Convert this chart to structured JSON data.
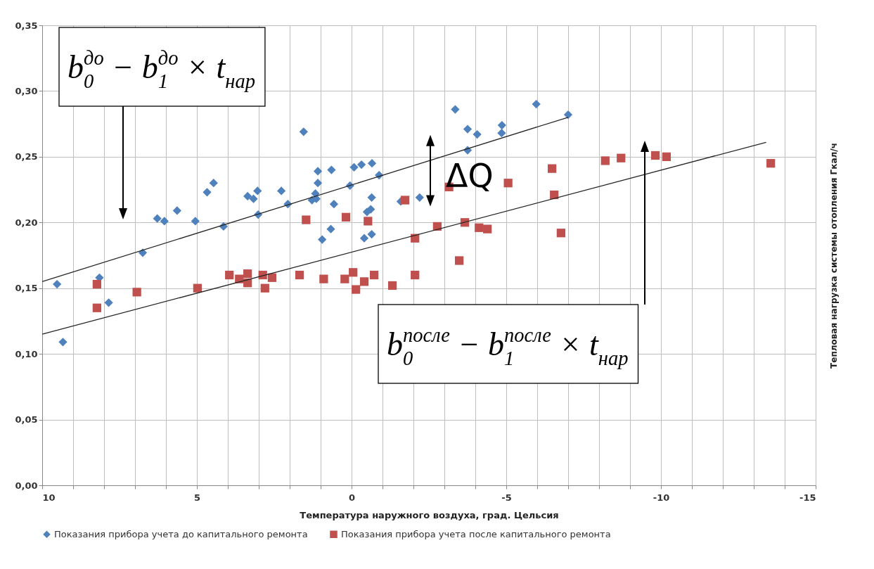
{
  "chart_data": {
    "type": "scatter",
    "xlabel": "Температура наружного воздуха, град. Цельсия",
    "ylabel": "Тепловая нагрузка системы отопления Гкал/ч",
    "xlim": [
      10,
      -15
    ],
    "xticks": [
      10,
      {
        "value": 9,
        "label": null
      },
      {
        "value": 8,
        "label": null
      },
      {
        "value": 7,
        "label": null
      },
      {
        "value": 6,
        "label": null
      },
      5,
      {
        "value": 4,
        "label": null
      },
      {
        "value": 3,
        "label": null
      },
      {
        "value": 2,
        "label": null
      },
      {
        "value": 1,
        "label": null
      },
      0,
      {
        "value": -1,
        "label": null
      },
      {
        "value": -2,
        "label": null
      },
      {
        "value": -3,
        "label": null
      },
      {
        "value": -4,
        "label": null
      },
      -5,
      {
        "value": -6,
        "label": null
      },
      {
        "value": -7,
        "label": null
      },
      {
        "value": -8,
        "label": null
      },
      {
        "value": -9,
        "label": null
      },
      -10,
      {
        "value": -11,
        "label": null
      },
      {
        "value": -12,
        "label": null
      },
      {
        "value": -13,
        "label": null
      },
      {
        "value": -14,
        "label": null
      },
      -15
    ],
    "ylim": [
      0,
      0.35
    ],
    "yticks": [
      {
        "value": 0,
        "label": "0,00"
      },
      {
        "value": 0.05,
        "label": "0,05"
      },
      {
        "value": 0.1,
        "label": "0,10"
      },
      {
        "value": 0.15,
        "label": "0,15"
      },
      {
        "value": 0.2,
        "label": "0,20"
      },
      {
        "value": 0.25,
        "label": "0,25"
      },
      {
        "value": 0.3,
        "label": "0,30"
      },
      {
        "value": 0.35,
        "label": "0,35"
      }
    ],
    "grid": true,
    "legend": "bottom",
    "series": [
      {
        "type": "scatter",
        "name": "Показания прибора учета до капитального ремонта",
        "color": "#4f81bd",
        "marker": "diamond",
        "x": [
          9.52,
          9.33,
          8.15,
          7.85,
          6.75,
          6.28,
          6.05,
          5.64,
          5.05,
          4.67,
          4.46,
          4.14,
          3.36,
          3.17,
          3.04,
          3.02,
          2.27,
          2.06,
          1.55,
          1.28,
          1.17,
          1.14,
          1.09,
          1.09,
          0.95,
          0.67,
          0.65,
          0.57,
          0.05,
          -0.08,
          -0.32,
          -0.66,
          -0.89,
          -0.65,
          -0.62,
          -0.5,
          -0.65,
          -0.41,
          -1.59,
          -2.2,
          -3.35,
          -3.75,
          -4.06,
          -3.75,
          -4.86,
          -4.85,
          -5.97,
          -7.0
        ],
        "values": [
          0.153,
          0.109,
          0.158,
          0.139,
          0.177,
          0.203,
          0.201,
          0.209,
          0.201,
          0.223,
          0.23,
          0.197,
          0.22,
          0.218,
          0.224,
          0.206,
          0.224,
          0.214,
          0.269,
          0.217,
          0.222,
          0.218,
          0.239,
          0.23,
          0.187,
          0.195,
          0.24,
          0.214,
          0.228,
          0.242,
          0.244,
          0.245,
          0.236,
          0.219,
          0.21,
          0.208,
          0.191,
          0.188,
          0.216,
          0.219,
          0.286,
          0.271,
          0.267,
          0.255,
          0.274,
          0.268,
          0.29,
          0.282
        ]
      },
      {
        "type": "scatter",
        "name": "Показания прибора учета после капитального ремонта",
        "color": "#c0504d",
        "marker": "square",
        "x": [
          8.23,
          8.23,
          6.94,
          4.98,
          3.95,
          3.63,
          3.36,
          3.36,
          2.87,
          2.8,
          2.57,
          1.68,
          0.9,
          1.47,
          0.18,
          0.22,
          -0.05,
          -0.53,
          -0.14,
          -0.41,
          -0.73,
          -1.32,
          -1.73,
          -2.05,
          -2.05,
          -2.77,
          -3.15,
          -3.48,
          -3.66,
          -4.12,
          -4.39,
          -5.06,
          -6.48,
          -6.55,
          -6.77,
          -8.2,
          -8.71,
          -9.82,
          -10.18,
          -13.55
        ],
        "values": [
          0.153,
          0.135,
          0.147,
          0.15,
          0.16,
          0.157,
          0.161,
          0.154,
          0.16,
          0.15,
          0.158,
          0.16,
          0.157,
          0.202,
          0.204,
          0.157,
          0.162,
          0.201,
          0.149,
          0.155,
          0.16,
          0.152,
          0.217,
          0.188,
          0.16,
          0.197,
          0.227,
          0.171,
          0.2,
          0.196,
          0.195,
          0.23,
          0.241,
          0.221,
          0.192,
          0.247,
          0.249,
          0.251,
          0.25,
          0.245
        ]
      },
      {
        "type": "line",
        "color": "#262626",
        "x": [
          10,
          -7
        ],
        "values": [
          0.155,
          0.28
        ]
      },
      {
        "type": "line",
        "color": "#262626",
        "x": [
          10,
          -13.4
        ],
        "values": [
          0.115,
          0.261
        ]
      }
    ],
    "annotations": [
      "b$_{0}$$^{до}$ − b$_{1}$$^{до}$ × t$_{нар}$",
      {
        "text": "ΔQ",
        "x": -3,
        "y": 0.228
      },
      "b$_{0}$$^{после}$ − b$_{1}$$^{после}$ × t$_{нар}$"
    ]
  }
}
